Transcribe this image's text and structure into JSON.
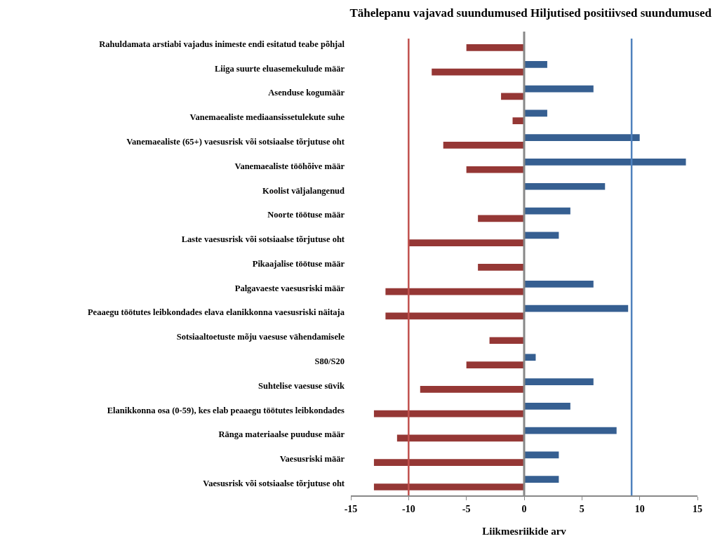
{
  "chart_data": {
    "type": "bar",
    "orientation": "horizontal",
    "title": "Tähelepanu vajavad suundumused Hiljutised positiivsed suundumused",
    "xlabel": "Liikmesriikide arv",
    "categories": [
      "Rahuldamata arstiabi vajadus inimeste endi esitatud teabe põhjal",
      "Liiga suurte eluasemekulude määr",
      "Asenduse kogumäär",
      "Vanemaealiste mediaansissetulekute suhe",
      "Vanemaealiste (65+) vaesusrisk või sotsiaalse tõrjutuse oht",
      "Vanemaealiste tööhõive määr",
      "Koolist väljalangenud",
      "Noorte töötuse määr",
      "Laste vaesusrisk või sotsiaalse tõrjutuse oht",
      "Pikaajalise töötuse määr",
      "Palgavaeste vaesusriski määr",
      "Peaaegu töötutes leibkondades elava elanikkonna vaesusriski näitaja",
      "Sotsiaaltoetuste mõju vaesuse vähendamisele",
      "S80/S20",
      "Suhtelise vaesuse süvik",
      "Elanikkonna osa (0-59), kes elab peaaegu töötutes leibkondades",
      "Ränga materiaalse puuduse määr",
      "Vaesusriski määr",
      "Vaesusrisk või sotsiaalse tõrjutuse oht"
    ],
    "series": [
      {
        "color": "#365f91",
        "values": [
          null,
          2,
          6,
          2,
          10,
          14,
          7,
          4,
          3,
          null,
          6,
          9,
          null,
          1,
          6,
          4,
          8,
          3,
          3
        ]
      },
      {
        "color": "#953735",
        "values": [
          -5,
          -8,
          -2,
          -1,
          -7,
          -5,
          null,
          -4,
          -10,
          -4,
          -12,
          -12,
          -3,
          -5,
          -9,
          -13,
          -11,
          -13,
          -13
        ]
      }
    ],
    "xlim": [
      -15,
      15
    ],
    "xticks": [
      -15,
      -10,
      -5,
      0,
      5,
      10,
      15
    ],
    "grid": false,
    "ref_lines": [
      {
        "axis": "x",
        "value": -10,
        "color": "#c0504d"
      },
      {
        "axis": "x",
        "value": 9.3,
        "color": "#4f81bd"
      }
    ]
  }
}
